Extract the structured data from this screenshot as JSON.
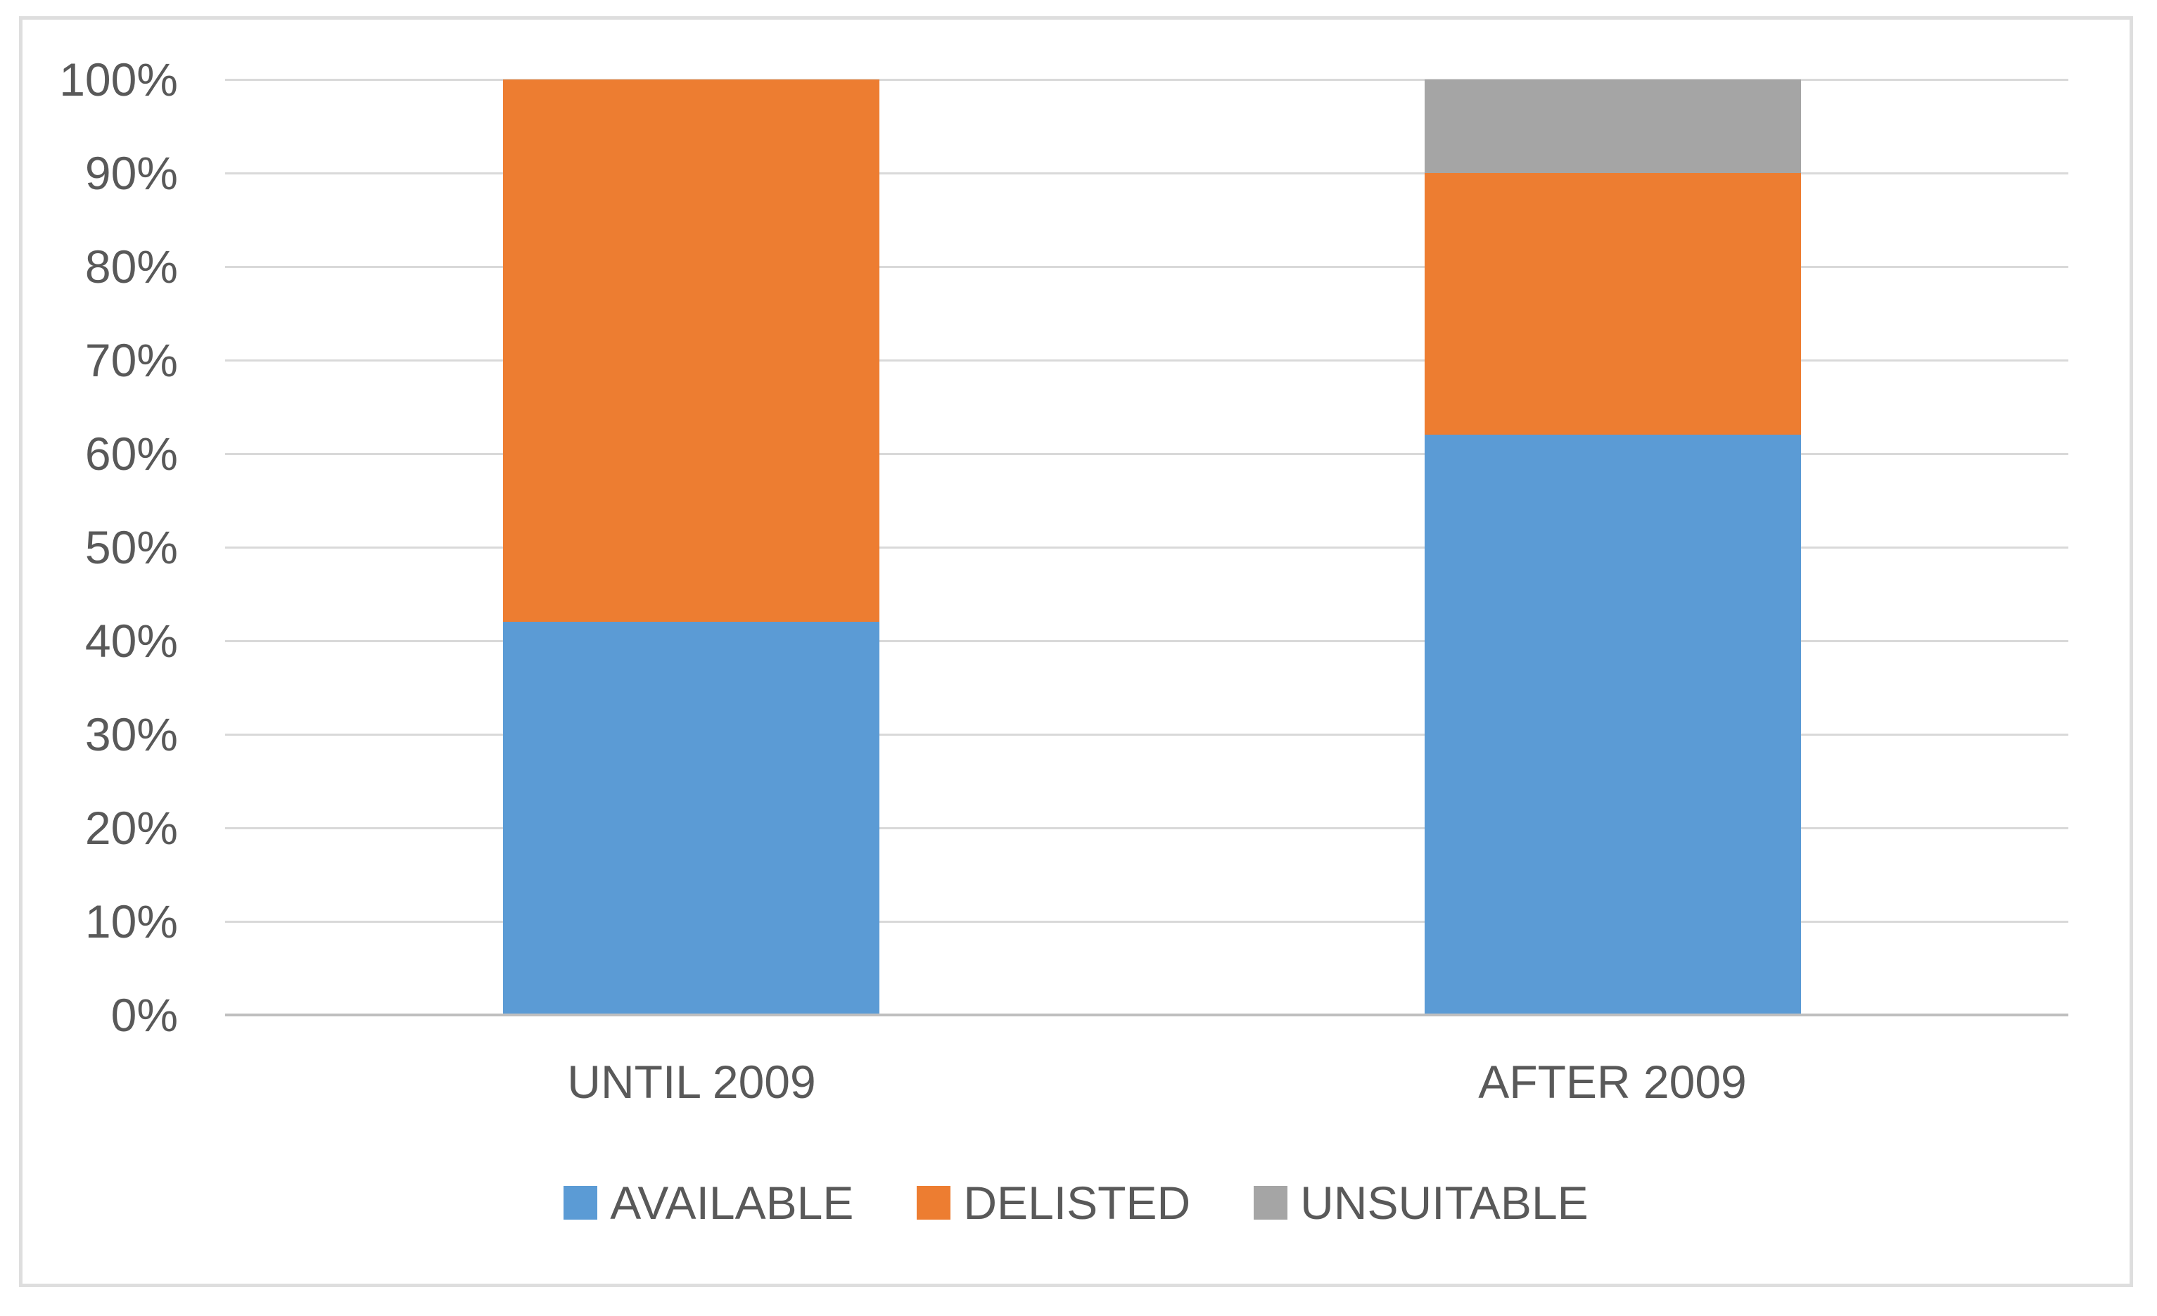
{
  "chart_data": {
    "type": "bar",
    "variant": "100-percent-stacked-column",
    "categories": [
      "UNTIL 2009",
      "AFTER 2009"
    ],
    "series": [
      {
        "name": "AVAILABLE",
        "color": "#5B9BD5",
        "values": [
          42,
          62
        ]
      },
      {
        "name": "DELISTED",
        "color": "#ED7D31",
        "values": [
          58,
          28
        ]
      },
      {
        "name": "UNSUITABLE",
        "color": "#A5A5A5",
        "values": [
          0,
          10
        ]
      }
    ],
    "ylim": [
      0,
      100
    ],
    "yticks": [
      0,
      10,
      20,
      30,
      40,
      50,
      60,
      70,
      80,
      90,
      100
    ],
    "ytick_labels": [
      "0%",
      "10%",
      "20%",
      "30%",
      "40%",
      "50%",
      "60%",
      "70%",
      "80%",
      "90%",
      "100%"
    ],
    "grid": true,
    "legend_position": "bottom",
    "colors": {
      "gridline": "#D9D9D9",
      "axis_line": "#BFBFBF",
      "text": "#595959",
      "frame_border": "#DEDEDE",
      "background": "#FFFFFF"
    }
  }
}
